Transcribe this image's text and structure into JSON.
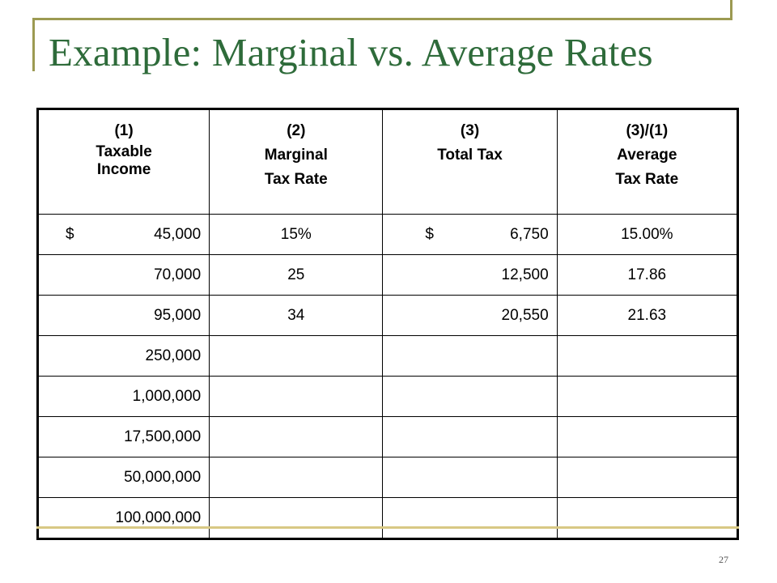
{
  "slide": {
    "title": "Example: Marginal vs. Average Rates",
    "page_number": "27"
  },
  "table": {
    "headers": [
      {
        "num": "(1)",
        "line1": "Taxable",
        "line2": "Income"
      },
      {
        "num": "(2)",
        "line1": "Marginal",
        "line2": "Tax Rate"
      },
      {
        "num": "(3)",
        "line1": "Total Tax",
        "line2": ""
      },
      {
        "num": "(3)/(1)",
        "line1": "Average",
        "line2": "Tax Rate"
      }
    ],
    "rows": [
      {
        "income_symbol": "$",
        "income": "45,000",
        "marginal": "15%",
        "tax_symbol": "$",
        "total_tax": "6,750",
        "average": "15.00%"
      },
      {
        "income_symbol": "",
        "income": "70,000",
        "marginal": "25",
        "tax_symbol": "",
        "total_tax": "12,500",
        "average": "17.86"
      },
      {
        "income_symbol": "",
        "income": "95,000",
        "marginal": "34",
        "tax_symbol": "",
        "total_tax": "20,550",
        "average": "21.63"
      },
      {
        "income_symbol": "",
        "income": "250,000",
        "marginal": "",
        "tax_symbol": "",
        "total_tax": "",
        "average": ""
      },
      {
        "income_symbol": "",
        "income": "1,000,000",
        "marginal": "",
        "tax_symbol": "",
        "total_tax": "",
        "average": ""
      },
      {
        "income_symbol": "",
        "income": "17,500,000",
        "marginal": "",
        "tax_symbol": "",
        "total_tax": "",
        "average": ""
      },
      {
        "income_symbol": "",
        "income": "50,000,000",
        "marginal": "",
        "tax_symbol": "",
        "total_tax": "",
        "average": ""
      },
      {
        "income_symbol": "",
        "income": "100,000,000",
        "marginal": "",
        "tax_symbol": "",
        "total_tax": "",
        "average": ""
      }
    ]
  },
  "colors": {
    "title": "#2e6b3a",
    "accent_rule": "#9c9a52"
  }
}
